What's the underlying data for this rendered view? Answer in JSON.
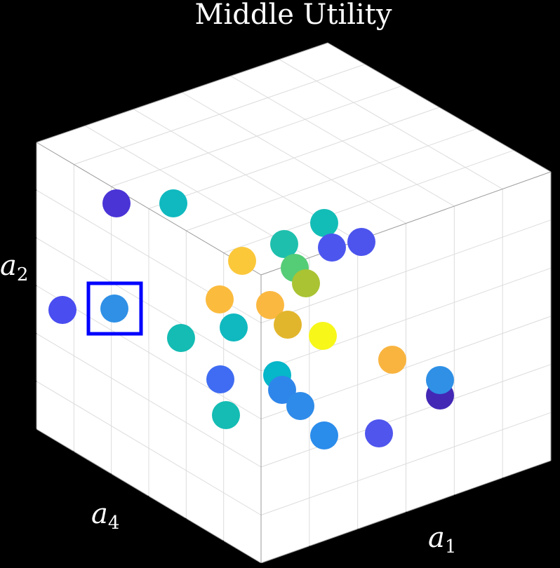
{
  "chart_data": {
    "type": "scatter",
    "title": "Middle Utility",
    "axis_labels": {
      "x": {
        "base": "a",
        "sub": "1"
      },
      "y": {
        "base": "a",
        "sub": "4"
      },
      "z": {
        "base": "a",
        "sub": "2"
      }
    },
    "grid": true,
    "highlight": {
      "index": 1,
      "color": "#0000ff"
    },
    "points": [
      {
        "color": "#4a4df0"
      },
      {
        "color": "#2f90e6"
      },
      {
        "color": "#4a34d6"
      },
      {
        "color": "#0fb9bf"
      },
      {
        "color": "#14bcb3"
      },
      {
        "color": "#0fb9bf"
      },
      {
        "color": "#3f6cf2"
      },
      {
        "color": "#14bcb3"
      },
      {
        "color": "#fbbb3d"
      },
      {
        "color": "#fbc83a"
      },
      {
        "color": "#1ebfad"
      },
      {
        "color": "#13bdb7"
      },
      {
        "color": "#4c56ef"
      },
      {
        "color": "#4c54ed"
      },
      {
        "color": "#55cc76"
      },
      {
        "color": "#a9c333"
      },
      {
        "color": "#fbb840"
      },
      {
        "color": "#e2b62c"
      },
      {
        "color": "#f7f71a"
      },
      {
        "color": "#06b6c9"
      },
      {
        "color": "#2f86ea"
      },
      {
        "color": "#2e8be9"
      },
      {
        "color": "#2a8ceb"
      },
      {
        "color": "#4f55ed"
      },
      {
        "color": "#f9b43f"
      },
      {
        "color": "#4328b6"
      },
      {
        "color": "#2f90e6"
      }
    ]
  }
}
